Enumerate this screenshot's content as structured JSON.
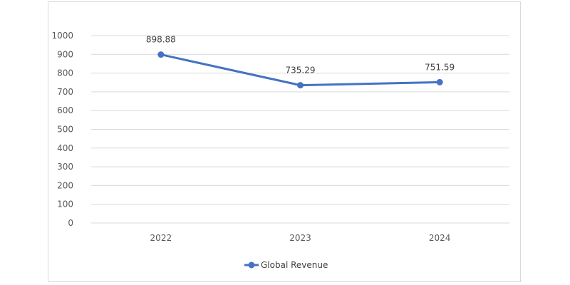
{
  "chart_data": {
    "type": "line",
    "categories": [
      "2022",
      "2023",
      "2024"
    ],
    "series": [
      {
        "name": "Global Revenue",
        "values": [
          898.88,
          735.29,
          751.59
        ],
        "data_labels": [
          "898.88",
          "735.29",
          "751.59"
        ]
      }
    ],
    "y_ticks": [
      "0",
      "100",
      "200",
      "300",
      "400",
      "500",
      "600",
      "700",
      "800",
      "900",
      "1000"
    ],
    "ylim": [
      0,
      1000
    ],
    "ystep": 100,
    "grid": true,
    "legend_position": "bottom",
    "colors": {
      "series": "#4472c4",
      "grid": "#d9d9d9",
      "text": "#595959"
    }
  }
}
